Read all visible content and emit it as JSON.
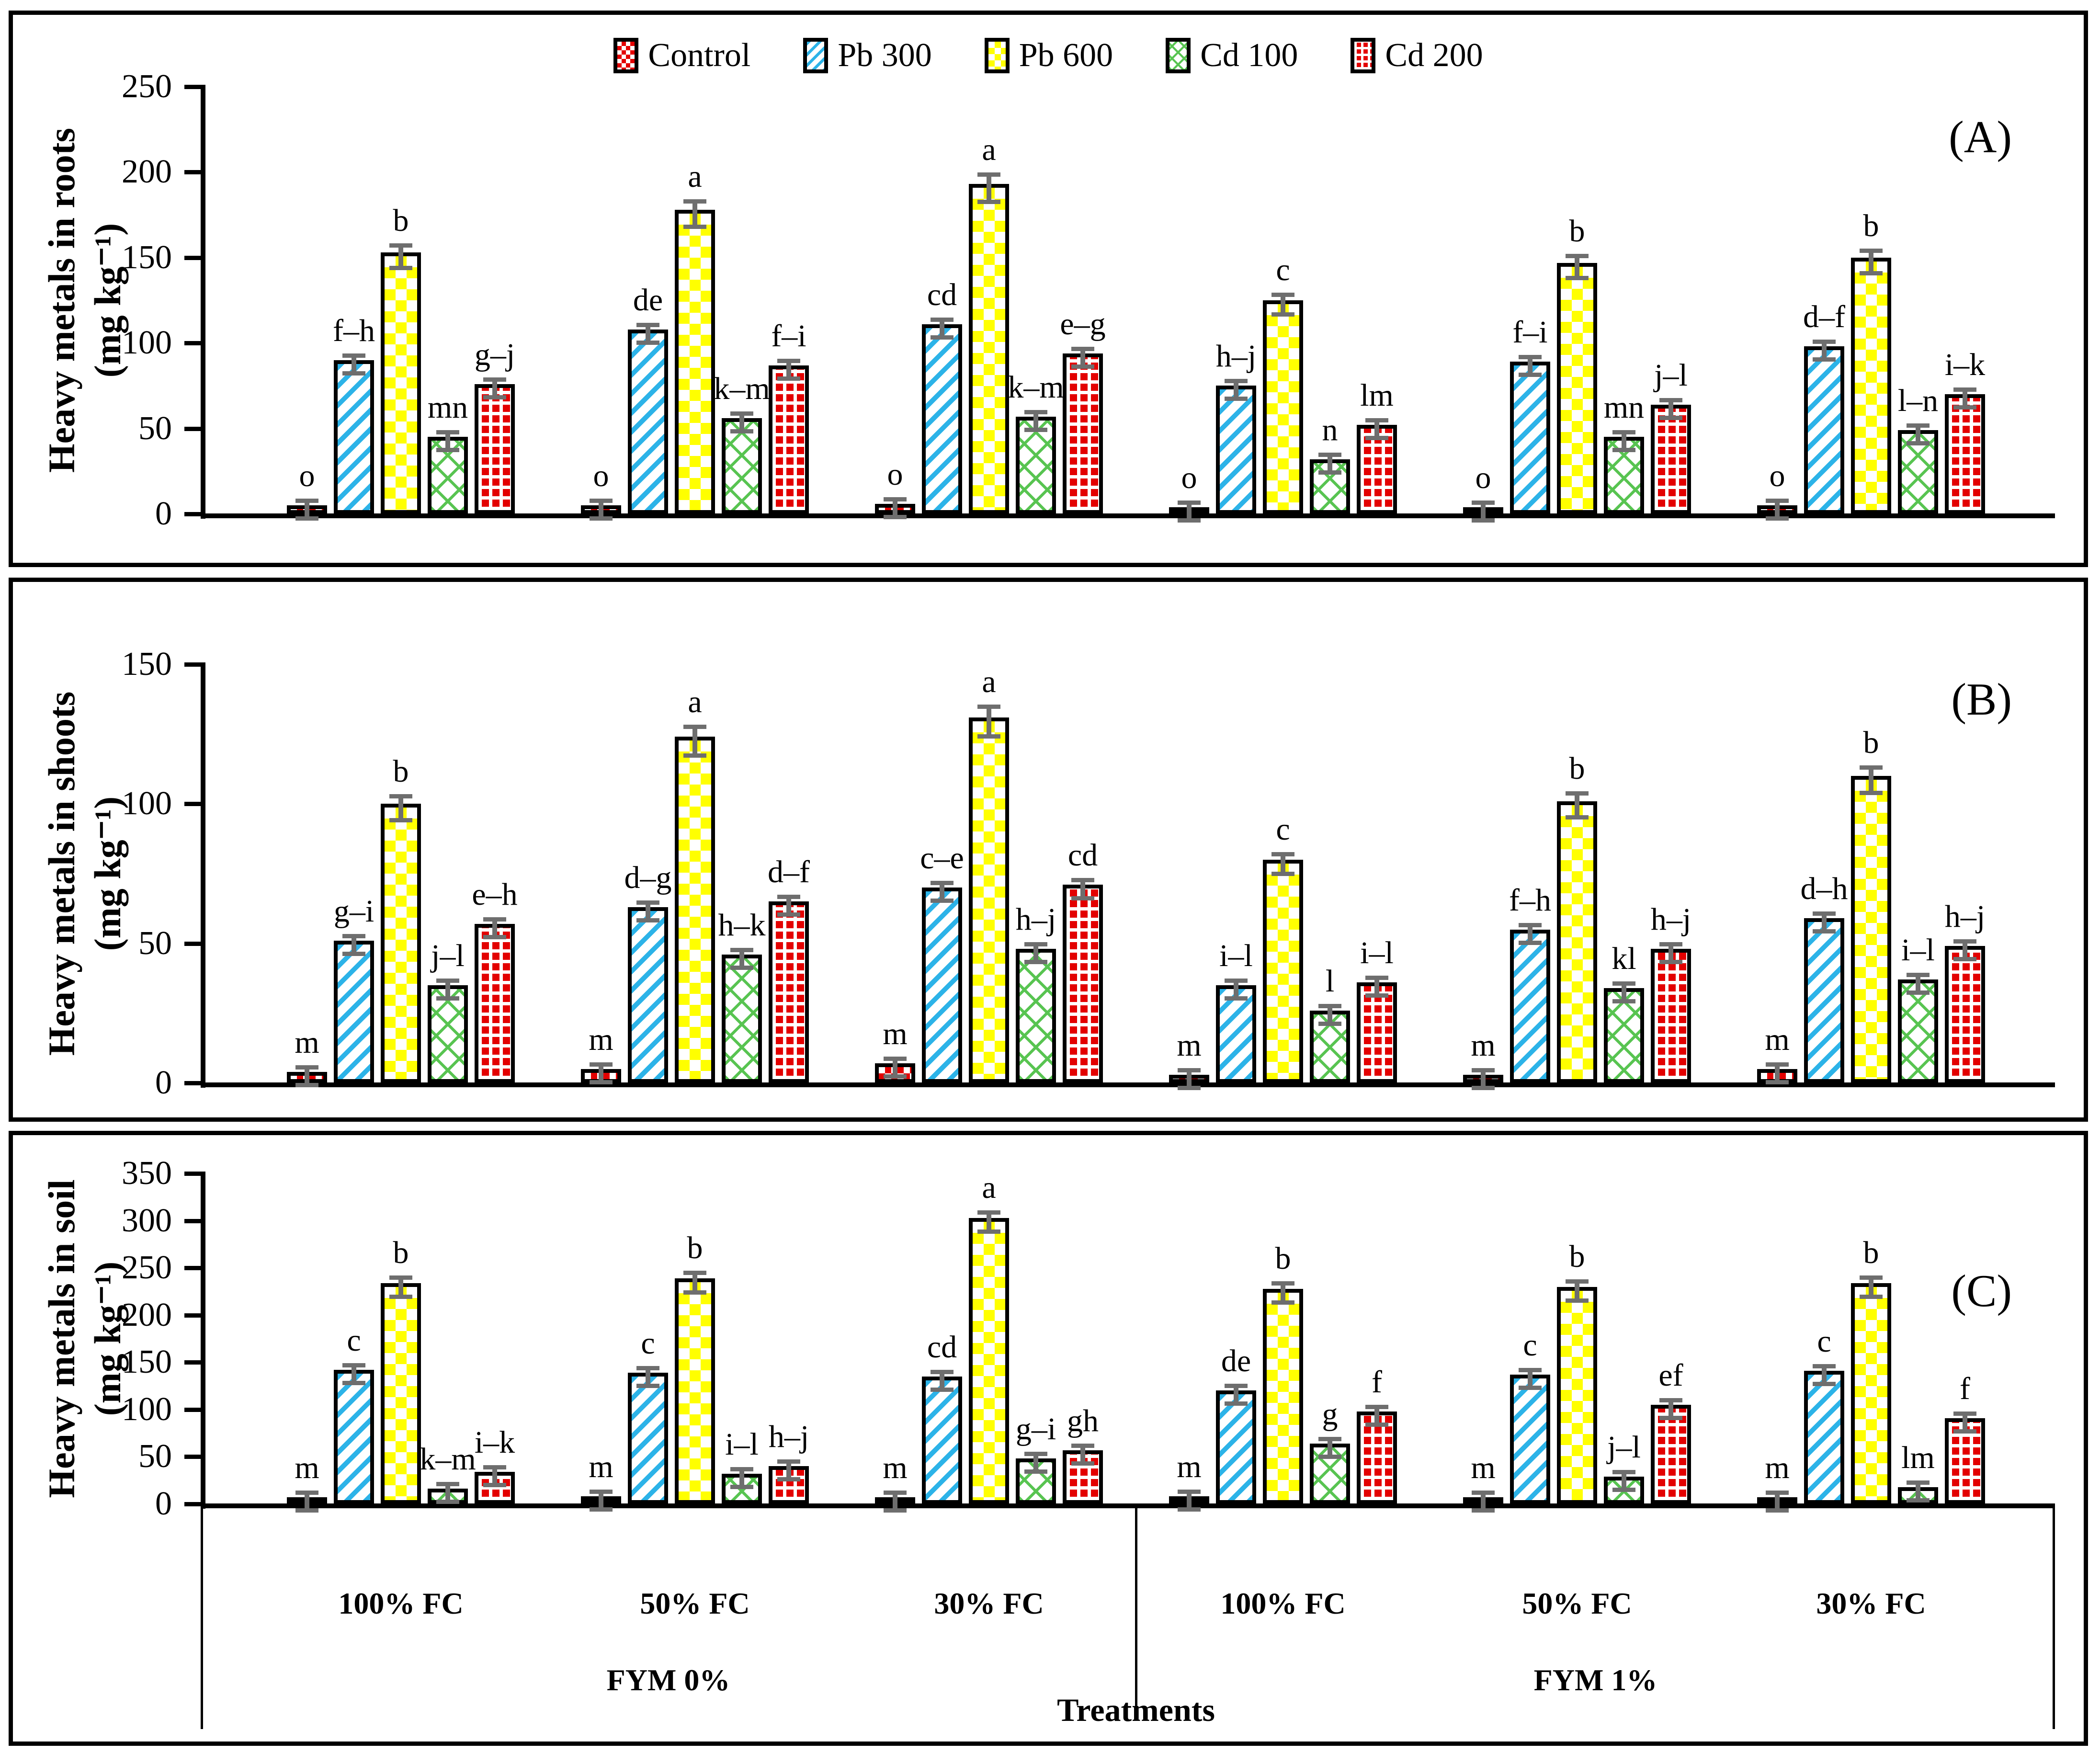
{
  "legend": [
    {
      "label": "Control",
      "pattern": "control",
      "color": "#e30000"
    },
    {
      "label": "Pb 300",
      "pattern": "pb300",
      "color": "#2cb3e8"
    },
    {
      "label": "Pb 600",
      "pattern": "pb600",
      "color": "#ffff00"
    },
    {
      "label": "Cd 100",
      "pattern": "cd100",
      "color": "#58c451"
    },
    {
      "label": "Cd 200",
      "pattern": "cd200",
      "color": "#e30000"
    }
  ],
  "error_bar_color": "#6e6e6e",
  "x_axis": {
    "title": "Treatments",
    "fc_labels": [
      "100% FC",
      "50% FC",
      "30% FC",
      "100% FC",
      "50% FC",
      "30% FC"
    ],
    "fym_labels": [
      "FYM 0%",
      "FYM 1%"
    ]
  },
  "chart_data": [
    {
      "type": "bar",
      "panel_letter": "(A)",
      "ylabel": "Heavy metals in roots (mg kg⁻¹)",
      "ylabel_line1": "Heavy metals in roots",
      "ylabel_line2": "(mg kg⁻¹)",
      "ylim": [
        0,
        250
      ],
      "ystep": 50,
      "grid": false,
      "legend_position": "top-center",
      "series_names": [
        "Control",
        "Pb 300",
        "Pb 600",
        "Cd 100",
        "Cd 200"
      ],
      "groups": [
        {
          "fc": "100% FC",
          "fym": "FYM 0%",
          "values": [
            5,
            90,
            153,
            45,
            76
          ],
          "letters": [
            "o",
            "f–h",
            "b",
            "mn",
            "g–j"
          ]
        },
        {
          "fc": "50% FC",
          "fym": "FYM 0%",
          "values": [
            5,
            108,
            178,
            56,
            87
          ],
          "letters": [
            "o",
            "de",
            "a",
            "k–m",
            "f–i"
          ]
        },
        {
          "fc": "30% FC",
          "fym": "FYM 0%",
          "values": [
            6,
            111,
            193,
            57,
            94
          ],
          "letters": [
            "o",
            "cd",
            "a",
            "k–m",
            "e–g"
          ]
        },
        {
          "fc": "100% FC",
          "fym": "FYM 1%",
          "values": [
            3,
            75,
            125,
            32,
            52
          ],
          "letters": [
            "o",
            "h–j",
            "c",
            "n",
            "lm"
          ]
        },
        {
          "fc": "50% FC",
          "fym": "FYM 1%",
          "values": [
            3,
            89,
            147,
            45,
            64
          ],
          "letters": [
            "o",
            "f–i",
            "b",
            "mn",
            "j–l"
          ]
        },
        {
          "fc": "30% FC",
          "fym": "FYM 1%",
          "values": [
            5,
            98,
            150,
            49,
            70
          ],
          "letters": [
            "o",
            "d–f",
            "b",
            "l–n",
            "i–k"
          ]
        }
      ]
    },
    {
      "type": "bar",
      "panel_letter": "(B)",
      "ylabel": "Heavy metals in shoots (mg kg⁻¹)",
      "ylabel_line1": "Heavy metals in shoots",
      "ylabel_line2": "(mg kg⁻¹)",
      "ylim": [
        0,
        150
      ],
      "ystep": 50,
      "grid": false,
      "series_names": [
        "Control",
        "Pb 300",
        "Pb 600",
        "Cd 100",
        "Cd 200"
      ],
      "groups": [
        {
          "fc": "100% FC",
          "fym": "FYM 0%",
          "values": [
            4,
            51,
            100,
            35,
            57
          ],
          "letters": [
            "m",
            "g–i",
            "b",
            "j–l",
            "e–h"
          ]
        },
        {
          "fc": "50% FC",
          "fym": "FYM 0%",
          "values": [
            5,
            63,
            124,
            46,
            65
          ],
          "letters": [
            "m",
            "d–g",
            "a",
            "h–k",
            "d–f"
          ]
        },
        {
          "fc": "30% FC",
          "fym": "FYM 0%",
          "values": [
            7,
            70,
            131,
            48,
            71
          ],
          "letters": [
            "m",
            "c–e",
            "a",
            "h–j",
            "cd"
          ]
        },
        {
          "fc": "100% FC",
          "fym": "FYM 1%",
          "values": [
            3,
            35,
            80,
            26,
            36
          ],
          "letters": [
            "m",
            "i–l",
            "c",
            "l",
            "i–l"
          ]
        },
        {
          "fc": "50% FC",
          "fym": "FYM 1%",
          "values": [
            3,
            55,
            101,
            34,
            48
          ],
          "letters": [
            "m",
            "f–h",
            "b",
            "kl",
            "h–j"
          ]
        },
        {
          "fc": "30% FC",
          "fym": "FYM 1%",
          "values": [
            5,
            59,
            110,
            37,
            49
          ],
          "letters": [
            "m",
            "d–h",
            "b",
            "i–l",
            "h–j"
          ]
        }
      ]
    },
    {
      "type": "bar",
      "panel_letter": "(C)",
      "ylabel": "Heavy metals in soil (mg kg⁻¹)",
      "ylabel_line1": "Heavy metals in soil",
      "ylabel_line2": "(mg kg⁻¹)",
      "ylim": [
        0,
        350
      ],
      "ystep": 50,
      "grid": false,
      "series_names": [
        "Control",
        "Pb 300",
        "Pb 600",
        "Cd 100",
        "Cd 200"
      ],
      "groups": [
        {
          "fc": "100% FC",
          "fym": "FYM 0%",
          "values": [
            7,
            142,
            234,
            16,
            34
          ],
          "letters": [
            "m",
            "c",
            "b",
            "k–m",
            "i–k"
          ]
        },
        {
          "fc": "50% FC",
          "fym": "FYM 0%",
          "values": [
            8,
            139,
            239,
            32,
            40
          ],
          "letters": [
            "m",
            "c",
            "b",
            "i–l",
            "h–j"
          ]
        },
        {
          "fc": "30% FC",
          "fym": "FYM 0%",
          "values": [
            4,
            135,
            303,
            48,
            57
          ],
          "letters": [
            "m",
            "cd",
            "a",
            "g–i",
            "gh"
          ]
        },
        {
          "fc": "100% FC",
          "fym": "FYM 1%",
          "values": [
            8,
            120,
            228,
            64,
            98
          ],
          "letters": [
            "m",
            "de",
            "b",
            "g",
            "f"
          ]
        },
        {
          "fc": "50% FC",
          "fym": "FYM 1%",
          "values": [
            5,
            137,
            230,
            29,
            105
          ],
          "letters": [
            "m",
            "c",
            "b",
            "j–l",
            "ef"
          ]
        },
        {
          "fc": "30% FC",
          "fym": "FYM 1%",
          "values": [
            6,
            141,
            234,
            18,
            91
          ],
          "letters": [
            "m",
            "c",
            "b",
            "lm",
            "f"
          ]
        }
      ]
    }
  ]
}
